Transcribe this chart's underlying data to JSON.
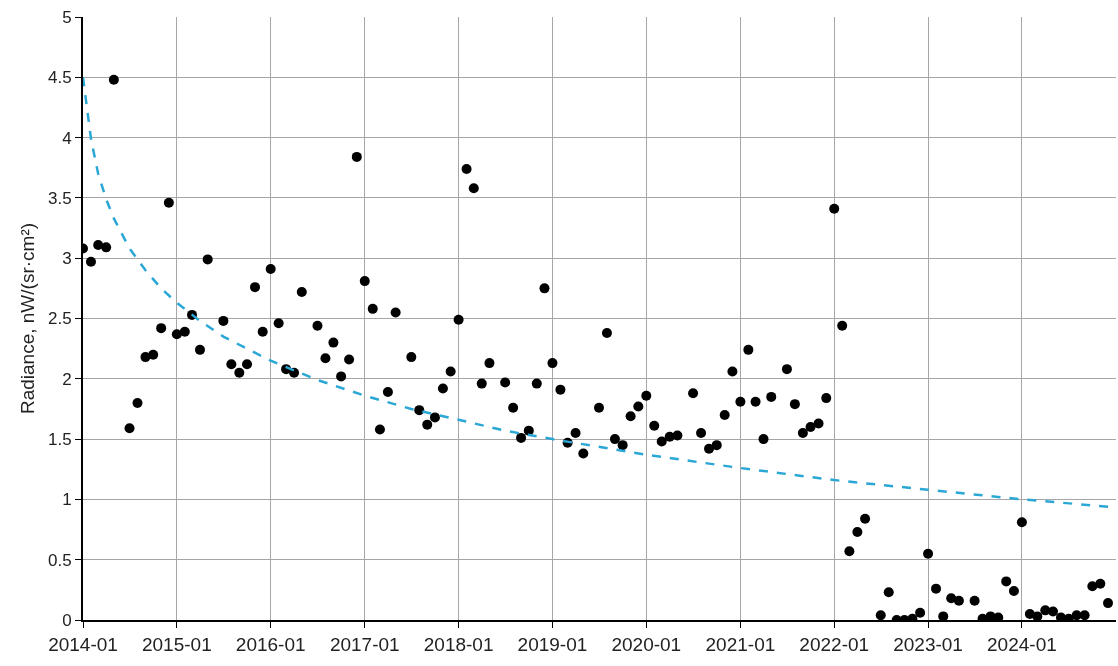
{
  "chart_data": {
    "type": "scatter",
    "ylabel": "Radiance, nW/(sr·cm²)",
    "xlim": [
      "2014-01",
      "2025-01"
    ],
    "xticks": [
      "2014-01",
      "2015-01",
      "2016-01",
      "2017-01",
      "2018-01",
      "2019-01",
      "2020-01",
      "2021-01",
      "2022-01",
      "2023-01",
      "2024-01"
    ],
    "ylim": [
      0,
      5
    ],
    "yticks": [
      0,
      0.5,
      1,
      1.5,
      2,
      2.5,
      3,
      3.5,
      4,
      4.5,
      5
    ],
    "grid": true,
    "series": [
      {
        "type": "scatter",
        "color": "#000000",
        "marker": "circle",
        "x": [
          "2014-01",
          "2014-02",
          "2014-03",
          "2014-04",
          "2014-05",
          "2014-06",
          "2014-07",
          "2014-08",
          "2014-09",
          "2014-10",
          "2014-11",
          "2014-12",
          "2015-01",
          "2015-02",
          "2015-03",
          "2015-04",
          "2015-05",
          "2015-06",
          "2015-07",
          "2015-08",
          "2015-09",
          "2015-10",
          "2015-11",
          "2015-12",
          "2016-01",
          "2016-02",
          "2016-03",
          "2016-04",
          "2016-05",
          "2016-06",
          "2016-07",
          "2016-08",
          "2016-09",
          "2016-10",
          "2016-11",
          "2016-12",
          "2017-01",
          "2017-02",
          "2017-03",
          "2017-04",
          "2017-05",
          "2017-06",
          "2017-07",
          "2017-08",
          "2017-09",
          "2017-10",
          "2017-11",
          "2017-12",
          "2018-01",
          "2018-02",
          "2018-03",
          "2018-04",
          "2018-05",
          "2018-06",
          "2018-07",
          "2018-08",
          "2018-09",
          "2018-10",
          "2018-11",
          "2018-12",
          "2019-01",
          "2019-02",
          "2019-03",
          "2019-04",
          "2019-05",
          "2019-06",
          "2019-07",
          "2019-08",
          "2019-09",
          "2019-10",
          "2019-11",
          "2019-12",
          "2020-01",
          "2020-02",
          "2020-03",
          "2020-04",
          "2020-05",
          "2020-06",
          "2020-07",
          "2020-08",
          "2020-09",
          "2020-10",
          "2020-11",
          "2020-12",
          "2021-01",
          "2021-02",
          "2021-03",
          "2021-04",
          "2021-05",
          "2021-06",
          "2021-07",
          "2021-08",
          "2021-09",
          "2021-10",
          "2021-11",
          "2021-12",
          "2022-01",
          "2022-02",
          "2022-03",
          "2022-04",
          "2022-05",
          "2022-06",
          "2022-07",
          "2022-08",
          "2022-09",
          "2022-10",
          "2022-11",
          "2022-12",
          "2023-01",
          "2023-02",
          "2023-03",
          "2023-04",
          "2023-05",
          "2023-06",
          "2023-07",
          "2023-08",
          "2023-09",
          "2023-10",
          "2023-11",
          "2023-12",
          "2024-01",
          "2024-02",
          "2024-03",
          "2024-04",
          "2024-05",
          "2024-06",
          "2024-07",
          "2024-08",
          "2024-09",
          "2024-10",
          "2024-11",
          "2024-12"
        ],
        "values": [
          3.08,
          2.97,
          3.11,
          3.09,
          4.48,
          null,
          1.59,
          1.8,
          2.18,
          2.2,
          2.42,
          3.46,
          2.37,
          2.39,
          2.53,
          2.24,
          2.99,
          null,
          2.48,
          2.12,
          2.05,
          2.12,
          2.76,
          2.39,
          2.91,
          2.46,
          2.08,
          2.05,
          2.72,
          null,
          2.44,
          2.17,
          2.3,
          2.02,
          2.16,
          3.84,
          2.81,
          2.58,
          1.58,
          1.89,
          2.55,
          null,
          2.18,
          1.74,
          1.62,
          1.68,
          1.92,
          2.06,
          2.49,
          3.74,
          3.58,
          1.96,
          2.13,
          null,
          1.97,
          1.76,
          1.51,
          1.57,
          1.96,
          2.75,
          2.13,
          1.91,
          1.47,
          1.55,
          1.38,
          null,
          1.76,
          2.38,
          1.5,
          1.45,
          1.69,
          1.77,
          1.86,
          1.61,
          1.48,
          1.52,
          1.53,
          null,
          1.88,
          1.55,
          1.42,
          1.45,
          1.7,
          2.06,
          1.81,
          2.24,
          1.81,
          1.5,
          1.85,
          null,
          2.08,
          1.79,
          1.55,
          1.6,
          1.63,
          1.84,
          3.41,
          2.44,
          0.57,
          0.73,
          0.84,
          null,
          0.04,
          0.23,
          0.0,
          0.0,
          0.01,
          0.06,
          0.55,
          0.26,
          0.03,
          0.18,
          0.16,
          null,
          0.16,
          0.01,
          0.03,
          0.02,
          0.32,
          0.24,
          0.81,
          0.05,
          0.03,
          0.08,
          0.07,
          0.02,
          0.01,
          0.04,
          0.04,
          0.28,
          0.3,
          0.14
        ]
      },
      {
        "type": "line",
        "color": "#2aa7d5",
        "line_style": "dashed",
        "marker": "none",
        "x": [
          "2014-01",
          "2014-02",
          "2014-03",
          "2014-04",
          "2014-05",
          "2014-07",
          "2014-09",
          "2014-11",
          "2015-01",
          "2015-04",
          "2015-07",
          "2016-01",
          "2016-07",
          "2017-01",
          "2017-07",
          "2018-01",
          "2018-07",
          "2019-01",
          "2020-01",
          "2021-01",
          "2022-01",
          "2023-01",
          "2024-01",
          "2024-12"
        ],
        "values": [
          4.5,
          3.99,
          3.7,
          3.49,
          3.33,
          3.08,
          2.9,
          2.75,
          2.63,
          2.48,
          2.35,
          2.15,
          1.99,
          1.86,
          1.75,
          1.66,
          1.57,
          1.5,
          1.37,
          1.26,
          1.16,
          1.08,
          1.0,
          0.94
        ]
      }
    ]
  }
}
